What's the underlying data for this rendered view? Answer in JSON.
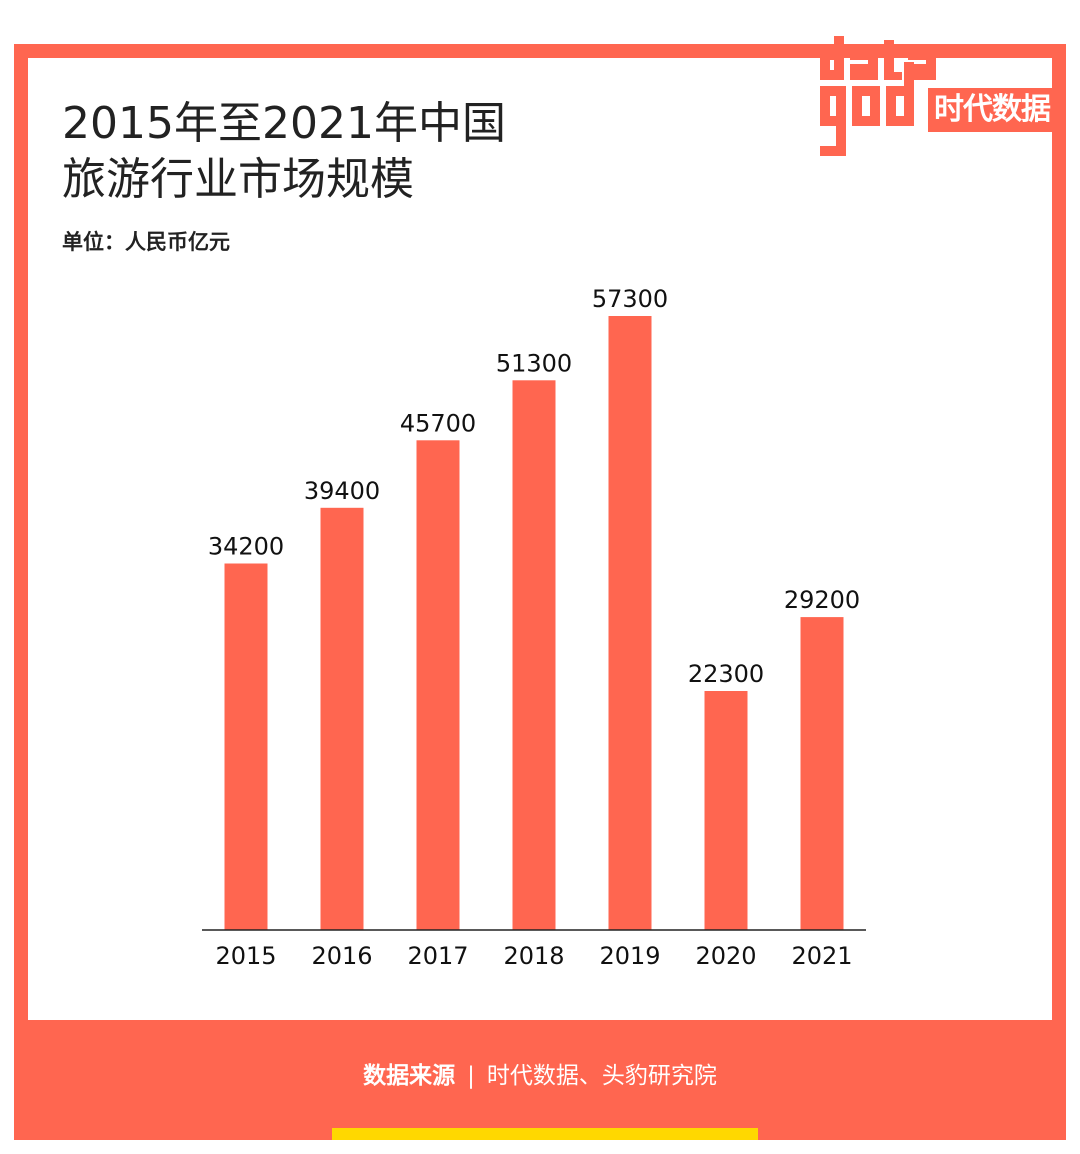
{
  "title_line1": "2015年至2021年中国",
  "title_line2": "旅游行业市场规模",
  "unit_label": "单位：人民币亿元",
  "logo": {
    "name": "datagod",
    "text": "时代数据"
  },
  "footer": {
    "label": "数据来源",
    "separator": "|",
    "source": "时代数据、头豹研究院"
  },
  "colors": {
    "accent": "#ff6650",
    "bar": "#ff6650",
    "yellow": "#ffd800",
    "text": "#222222"
  },
  "chart_data": {
    "type": "bar",
    "title": "2015年至2021年中国旅游行业市场规模",
    "ylabel": "单位：人民币亿元",
    "categories": [
      "2015",
      "2016",
      "2017",
      "2018",
      "2019",
      "2020",
      "2021"
    ],
    "values": [
      34200,
      39400,
      45700,
      51300,
      57300,
      22300,
      29200
    ],
    "value_labels": [
      "34200",
      "39400",
      "45700",
      "51300",
      "57300",
      "22300",
      "29200"
    ],
    "ylim": [
      0,
      57300
    ],
    "grid": false,
    "legend": "none"
  }
}
